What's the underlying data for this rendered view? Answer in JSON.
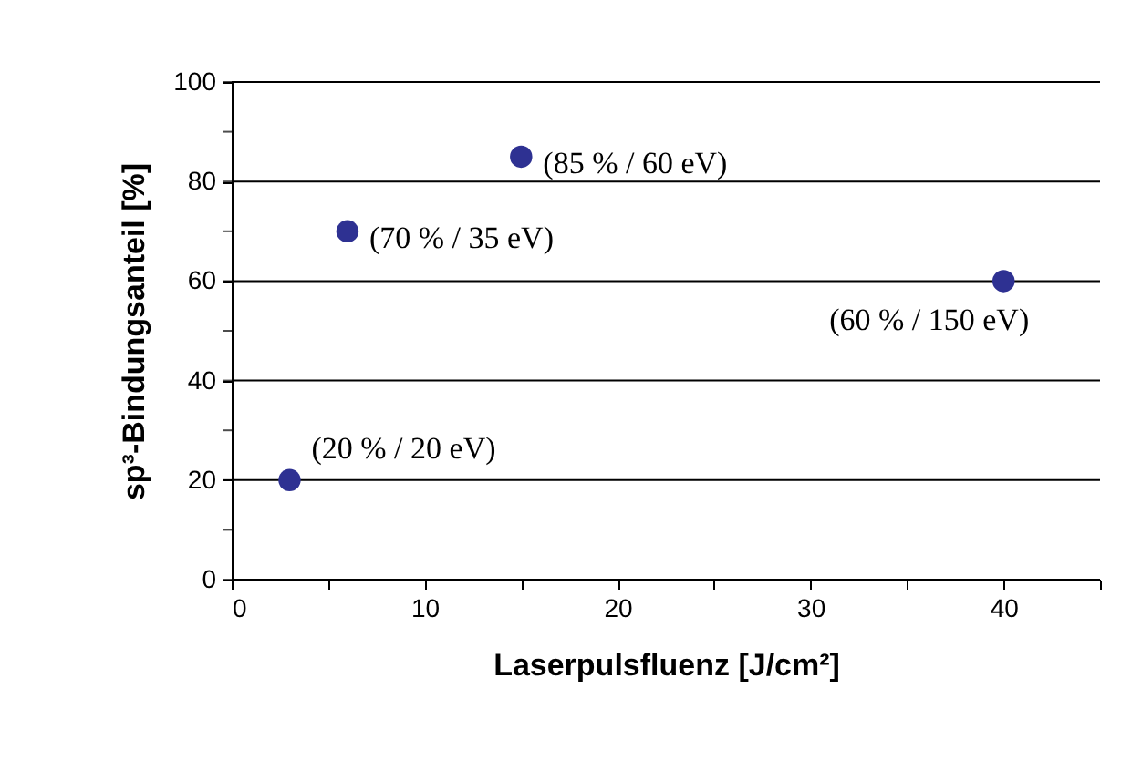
{
  "chart_data": {
    "type": "scatter",
    "xlabel": "Laserpulsfluenz [J/cm²]",
    "ylabel": "sp³-Bindungsanteil [%]",
    "x": [
      3,
      6,
      15,
      40
    ],
    "series": [
      {
        "color": "#2e3192",
        "values": [
          20,
          70,
          85,
          60
        ]
      }
    ],
    "xlim": [
      0,
      45
    ],
    "xticks": [
      0,
      {
        "value": 5,
        "label": null
      },
      10,
      {
        "value": 15,
        "label": null
      },
      20,
      {
        "value": 25,
        "label": null
      },
      30,
      {
        "value": 35,
        "label": null
      },
      40,
      {
        "value": 45,
        "label": null
      }
    ],
    "ylim": [
      0,
      100
    ],
    "yticks": [
      0,
      {
        "value": 10,
        "label": null
      },
      20,
      {
        "value": 30,
        "label": null
      },
      40,
      {
        "value": 50,
        "label": null
      },
      60,
      {
        "value": 70,
        "label": null
      },
      80,
      {
        "value": 90,
        "label": null
      },
      100
    ],
    "grid": "y",
    "marker": "circle",
    "legend": false,
    "annotations": [
      {
        "text": "(20 % / 20 eV)",
        "x": 3,
        "y": 20
      },
      {
        "text": "(70 % / 35 eV)",
        "x": 6,
        "y": 70
      },
      {
        "text": "(85 % / 60 eV)",
        "x": 15,
        "y": 85
      },
      {
        "text": "(60 % / 150 eV)",
        "x": 40,
        "y": 60
      }
    ]
  }
}
